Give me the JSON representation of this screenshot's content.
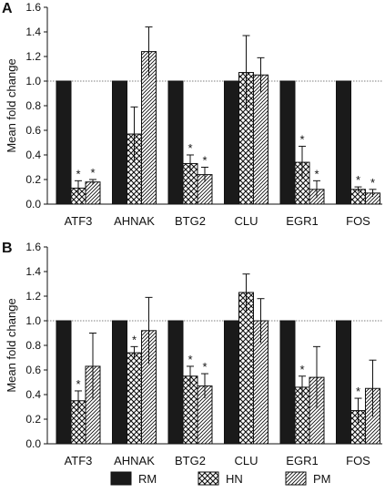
{
  "chart_data": [
    {
      "type": "bar",
      "panel_label": "A",
      "ylabel": "Mean fold change",
      "ylim": [
        0,
        1.6
      ],
      "yticks": [
        "0.0",
        "0.2",
        "0.4",
        "0.6",
        "0.8",
        "1.0",
        "1.2",
        "1.4",
        "1.6"
      ],
      "reference_line": 1.0,
      "categories": [
        "ATF3",
        "AHNAK",
        "BTG2",
        "CLU",
        "EGR1",
        "FOS"
      ],
      "series": [
        {
          "name": "RM",
          "fill": "solid",
          "values": [
            1.0,
            1.0,
            1.0,
            1.0,
            1.0,
            1.0
          ],
          "errors": [
            0,
            0,
            0,
            0,
            0,
            0
          ],
          "significant": [
            false,
            false,
            false,
            false,
            false,
            false
          ]
        },
        {
          "name": "HN",
          "fill": "crosshatch",
          "values": [
            0.13,
            0.57,
            0.33,
            1.07,
            0.34,
            0.12
          ],
          "errors": [
            0.06,
            0.22,
            0.07,
            0.3,
            0.13,
            0.02
          ],
          "significant": [
            true,
            false,
            true,
            false,
            true,
            true
          ]
        },
        {
          "name": "PM",
          "fill": "diagonal",
          "values": [
            0.18,
            1.24,
            0.24,
            1.05,
            0.12,
            0.09
          ],
          "errors": [
            0.02,
            0.2,
            0.06,
            0.14,
            0.07,
            0.03
          ],
          "significant": [
            true,
            false,
            true,
            false,
            true,
            true
          ]
        }
      ],
      "significance_marker": "*"
    },
    {
      "type": "bar",
      "panel_label": "B",
      "ylabel": "Mean fold change",
      "ylim": [
        0,
        1.6
      ],
      "yticks": [
        "0.0",
        "0.2",
        "0.4",
        "0.6",
        "0.8",
        "1.0",
        "1.2",
        "1.4",
        "1.6"
      ],
      "reference_line": 1.0,
      "categories": [
        "ATF3",
        "AHNAK",
        "BTG2",
        "CLU",
        "EGR1",
        "FOS"
      ],
      "series": [
        {
          "name": "RM",
          "fill": "solid",
          "values": [
            1.0,
            1.0,
            1.0,
            1.0,
            1.0,
            1.0
          ],
          "errors": [
            0,
            0,
            0,
            0,
            0,
            0
          ],
          "significant": [
            false,
            false,
            false,
            false,
            false,
            false
          ]
        },
        {
          "name": "HN",
          "fill": "crosshatch",
          "values": [
            0.35,
            0.74,
            0.55,
            1.23,
            0.46,
            0.27
          ],
          "errors": [
            0.08,
            0.05,
            0.08,
            0.15,
            0.09,
            0.1
          ],
          "significant": [
            true,
            true,
            true,
            false,
            true,
            true
          ]
        },
        {
          "name": "PM",
          "fill": "diagonal",
          "values": [
            0.63,
            0.92,
            0.47,
            1.0,
            0.54,
            0.45
          ],
          "errors": [
            0.27,
            0.27,
            0.1,
            0.18,
            0.25,
            0.23
          ],
          "significant": [
            false,
            false,
            true,
            false,
            false,
            false
          ]
        }
      ],
      "significance_marker": "*"
    }
  ],
  "legend": {
    "placement": "bottom",
    "items": [
      "RM",
      "HN",
      "PM"
    ]
  },
  "colors": {
    "bar_solid": "#1a1a1a",
    "outline": "#111111",
    "reference_line": "#555555"
  }
}
